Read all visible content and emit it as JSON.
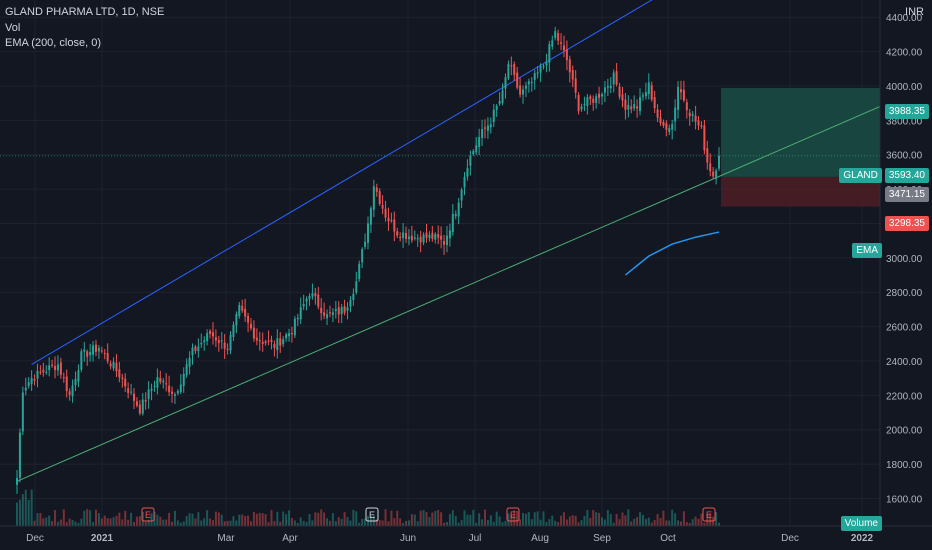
{
  "header": {
    "symbol_line": "GLAND PHARMA LTD, 1D, NSE",
    "vol_label": "Vol",
    "ema_label": "EMA (200, close, 0)",
    "currency": "INR"
  },
  "price_tags": {
    "target": "3988.35",
    "symbol": "GLAND",
    "last": "3593.40",
    "entry": "3471.15",
    "stop": "3298.35",
    "ema": "EMA",
    "volume": "Volume"
  },
  "colors": {
    "up": "#26a69a",
    "down": "#ef5350",
    "background": "#131722",
    "grid": "#1e222d",
    "channel_upper": "#2962ff",
    "channel_lower": "#4caf75",
    "ema": "#2196f3",
    "profit_zone": "#1b4d45",
    "loss_zone": "#4d1f24"
  },
  "chart_data": {
    "type": "candlestick",
    "ylim": [
      1440,
      4500
    ],
    "y_ticks": [
      1600,
      1800,
      2000,
      2200,
      2400,
      2600,
      2800,
      3000,
      3200,
      3400,
      3600,
      3800,
      4000,
      4200,
      4400
    ],
    "x_ticks": [
      "Dec",
      "2021",
      "Mar",
      "Apr",
      "Jun",
      "Jul",
      "Aug",
      "Sep",
      "Oct",
      "Dec",
      "2022"
    ],
    "earnings_markers": [
      "E",
      "E",
      "E",
      "E"
    ],
    "anchors": [
      [
        0,
        1720
      ],
      [
        2,
        2240
      ],
      [
        5,
        2300
      ],
      [
        10,
        2350
      ],
      [
        14,
        2380
      ],
      [
        18,
        2200
      ],
      [
        22,
        2430
      ],
      [
        28,
        2480
      ],
      [
        35,
        2320
      ],
      [
        42,
        2120
      ],
      [
        48,
        2300
      ],
      [
        54,
        2210
      ],
      [
        60,
        2450
      ],
      [
        66,
        2560
      ],
      [
        72,
        2480
      ],
      [
        76,
        2700
      ],
      [
        82,
        2530
      ],
      [
        88,
        2490
      ],
      [
        94,
        2580
      ],
      [
        100,
        2800
      ],
      [
        106,
        2660
      ],
      [
        112,
        2700
      ],
      [
        116,
        2860
      ],
      [
        120,
        3200
      ],
      [
        122,
        3430
      ],
      [
        126,
        3250
      ],
      [
        130,
        3150
      ],
      [
        136,
        3120
      ],
      [
        142,
        3120
      ],
      [
        146,
        3090
      ],
      [
        150,
        3280
      ],
      [
        154,
        3550
      ],
      [
        158,
        3700
      ],
      [
        162,
        3800
      ],
      [
        166,
        3950
      ],
      [
        168,
        4130
      ],
      [
        172,
        3950
      ],
      [
        176,
        4020
      ],
      [
        180,
        4120
      ],
      [
        184,
        4310
      ],
      [
        188,
        4150
      ],
      [
        192,
        3880
      ],
      [
        198,
        3930
      ],
      [
        204,
        4050
      ],
      [
        208,
        3880
      ],
      [
        212,
        3880
      ],
      [
        216,
        4000
      ],
      [
        220,
        3760
      ],
      [
        224,
        3780
      ],
      [
        226,
        4000
      ],
      [
        230,
        3850
      ],
      [
        234,
        3740
      ],
      [
        236,
        3560
      ],
      [
        238,
        3480
      ],
      [
        240,
        3593
      ]
    ],
    "channel_upper": [
      [
        5,
        2380
      ],
      [
        220,
        4530
      ]
    ],
    "channel_lower": [
      [
        0,
        1700
      ],
      [
        295,
        3880
      ]
    ],
    "ema_line": [
      [
        208,
        2900
      ],
      [
        216,
        3010
      ],
      [
        224,
        3080
      ],
      [
        232,
        3120
      ],
      [
        240,
        3150
      ]
    ],
    "position": {
      "entry": 3471.15,
      "target": 3988.35,
      "stop": 3298.35,
      "last": 3593.4
    }
  }
}
